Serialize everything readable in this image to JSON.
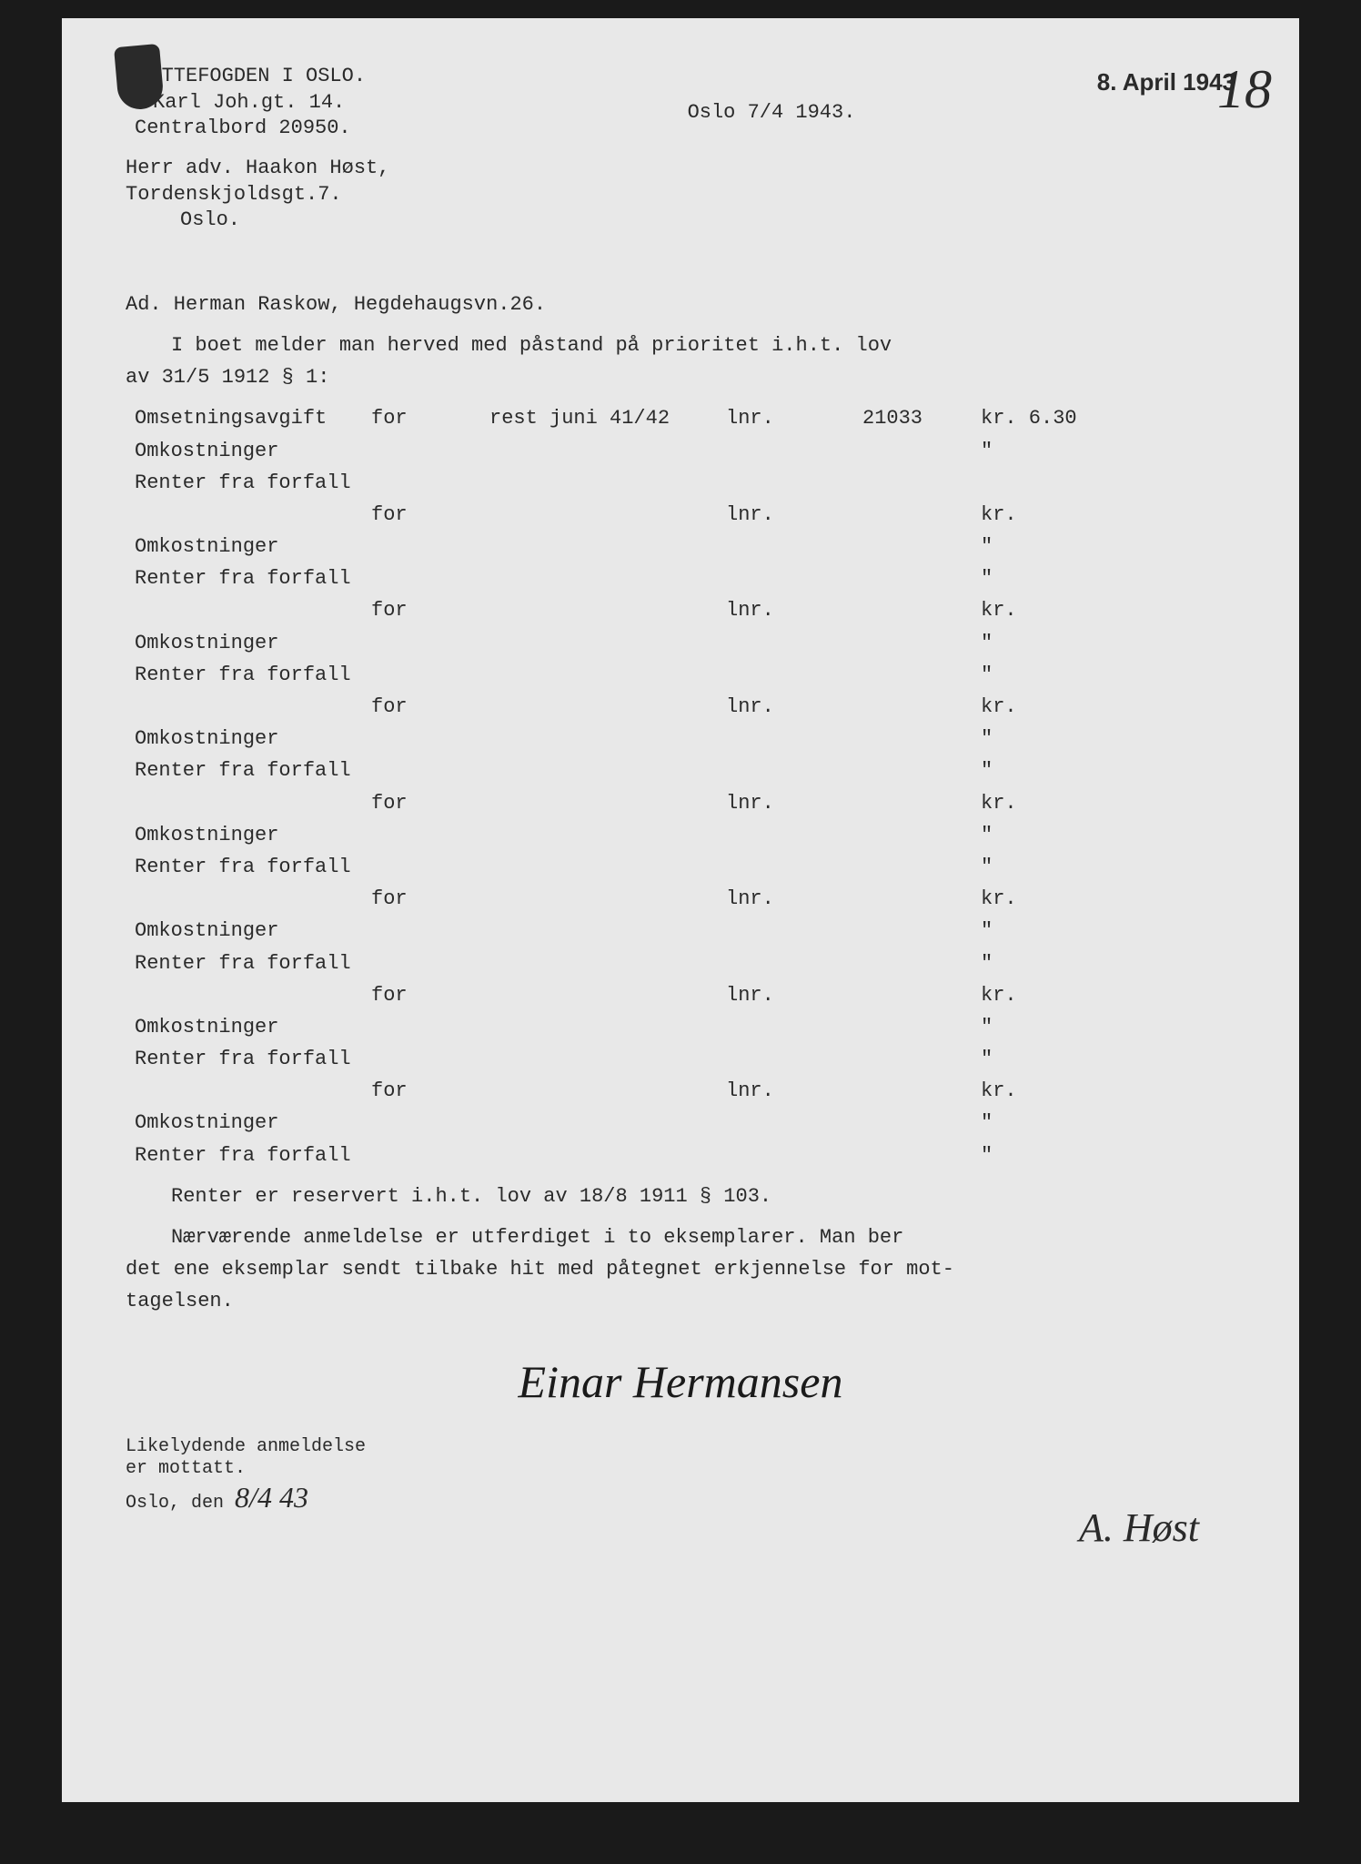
{
  "sender": {
    "line1": "SKATTEFOGDEN I OSLO.",
    "line2": "Karl Joh.gt. 14.",
    "line3": "Centralbord 20950."
  },
  "stamp": "8. April 1943",
  "handwritten_top": "18",
  "date_line": "Oslo   7/4 1943.",
  "recipient": {
    "line1": "Herr adv. Haakon Høst,",
    "line2": "Tordenskjoldsgt.7.",
    "line3": "Oslo."
  },
  "subject": "Ad.  Herman Raskow, Hegdehaugsvn.26.",
  "intro1": "I boet melder man herved med påstand på prioritet i.h.t. lov",
  "intro2": "av 31/5 1912 § 1:",
  "rows": [
    {
      "c1": "Omsetningsavgift",
      "c2": "for",
      "c3": "rest juni 41/42",
      "c4": "lnr.",
      "c5": "21033",
      "c6": "kr. 6.30"
    },
    {
      "c1": "Omkostninger",
      "c2": "",
      "c3": "",
      "c4": "",
      "c5": "",
      "c6": "\""
    },
    {
      "c1": "Renter fra forfall",
      "c2": "",
      "c3": "",
      "c4": "",
      "c5": "",
      "c6": ""
    },
    {
      "c1": "",
      "c2": "for",
      "c3": "",
      "c4": "lnr.",
      "c5": "",
      "c6": "kr."
    },
    {
      "c1": "Omkostninger",
      "c2": "",
      "c3": "",
      "c4": "",
      "c5": "",
      "c6": "\""
    },
    {
      "c1": "Renter fra forfall",
      "c2": "",
      "c3": "",
      "c4": "",
      "c5": "",
      "c6": "\""
    },
    {
      "c1": "",
      "c2": "for",
      "c3": "",
      "c4": "lnr.",
      "c5": "",
      "c6": "kr."
    },
    {
      "c1": "Omkostninger",
      "c2": "",
      "c3": "",
      "c4": "",
      "c5": "",
      "c6": "\""
    },
    {
      "c1": "Renter fra forfall",
      "c2": "",
      "c3": "",
      "c4": "",
      "c5": "",
      "c6": "\""
    },
    {
      "c1": "",
      "c2": "for",
      "c3": "",
      "c4": "lnr.",
      "c5": "",
      "c6": "kr."
    },
    {
      "c1": "Omkostninger",
      "c2": "",
      "c3": "",
      "c4": "",
      "c5": "",
      "c6": "\""
    },
    {
      "c1": "Renter fra forfall",
      "c2": "",
      "c3": "",
      "c4": "",
      "c5": "",
      "c6": "\""
    },
    {
      "c1": "",
      "c2": "for",
      "c3": "",
      "c4": "lnr.",
      "c5": "",
      "c6": "kr."
    },
    {
      "c1": "Omkostninger",
      "c2": "",
      "c3": "",
      "c4": "",
      "c5": "",
      "c6": "\""
    },
    {
      "c1": "Renter fra forfall",
      "c2": "",
      "c3": "",
      "c4": "",
      "c5": "",
      "c6": "\""
    },
    {
      "c1": "",
      "c2": "for",
      "c3": "",
      "c4": "lnr.",
      "c5": "",
      "c6": "kr."
    },
    {
      "c1": "Omkostninger",
      "c2": "",
      "c3": "",
      "c4": "",
      "c5": "",
      "c6": "\""
    },
    {
      "c1": "Renter fra forfall",
      "c2": "",
      "c3": "",
      "c4": "",
      "c5": "",
      "c6": "\""
    },
    {
      "c1": "",
      "c2": "for",
      "c3": "",
      "c4": "lnr.",
      "c5": "",
      "c6": "kr."
    },
    {
      "c1": "Omkostninger",
      "c2": "",
      "c3": "",
      "c4": "",
      "c5": "",
      "c6": "\""
    },
    {
      "c1": "Renter fra forfall",
      "c2": "",
      "c3": "",
      "c4": "",
      "c5": "",
      "c6": "\""
    },
    {
      "c1": "",
      "c2": "for",
      "c3": "",
      "c4": "lnr.",
      "c5": "",
      "c6": "kr."
    },
    {
      "c1": "Omkostninger",
      "c2": "",
      "c3": "",
      "c4": "",
      "c5": "",
      "c6": "\""
    },
    {
      "c1": "Renter fra forfall",
      "c2": "",
      "c3": "",
      "c4": "",
      "c5": "",
      "c6": "\""
    }
  ],
  "footer1": "Renter er reservert i.h.t. lov av 18/8 1911 § 103.",
  "footer2": "Nærværende anmeldelse er utferdiget i to eksemplarer. Man ber",
  "footer3": "det ene eksemplar sendt tilbake hit med påtegnet erkjennelse for mot-",
  "footer4": "tagelsen.",
  "signature": "Einar Hermansen",
  "bottom_note1": "Likelydende anmeldelse",
  "bottom_note2": "er mottatt.",
  "bottom_note3_label": "Oslo, den",
  "bottom_note3_date": "8/4 43",
  "bottom_signature": "A. Høst"
}
